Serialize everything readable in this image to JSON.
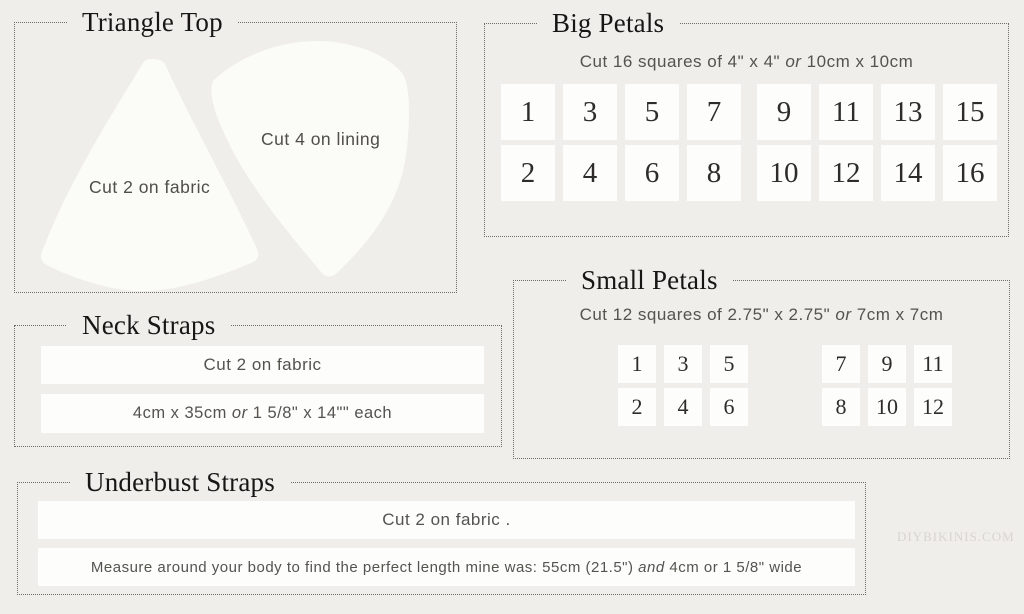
{
  "page": {
    "background": "#f0eeea",
    "panel_fill": "#fdfdfc",
    "border_color": "#6e6c68",
    "watermark": "DIYBIKINIS.COM"
  },
  "triangle_top": {
    "title": "Triangle Top",
    "fabric_label": "Cut 2 on fabric",
    "lining_label": "Cut 4 on lining"
  },
  "big_petals": {
    "title": "Big Petals",
    "subtitle": {
      "pre": "Cut 16 squares of 4\" x 4\"",
      "em": " or ",
      "post": "10cm x 10cm"
    },
    "groups": [
      [
        [
          1,
          3,
          5,
          7
        ],
        [
          2,
          4,
          6,
          8
        ]
      ],
      [
        [
          9,
          11,
          13,
          15
        ],
        [
          10,
          12,
          14,
          16
        ]
      ]
    ]
  },
  "small_petals": {
    "title": "Small Petals",
    "subtitle": {
      "pre": "Cut 12 squares of 2.75\" x 2.75\"",
      "em": " or ",
      "post": "7cm x 7cm"
    },
    "groups": [
      [
        [
          1,
          3,
          5
        ],
        [
          2,
          4,
          6
        ]
      ],
      [
        [
          7,
          9,
          11
        ],
        [
          8,
          10,
          12
        ]
      ]
    ]
  },
  "neck_straps": {
    "title": "Neck Straps",
    "cut_label": "Cut 2 on fabric",
    "size": {
      "pre": "4cm x 35cm",
      "em": " or ",
      "post": "1 5/8\" x 14\"\" each"
    }
  },
  "underbust_straps": {
    "title": "Underbust Straps",
    "cut_label": "Cut 2 on fabric .",
    "measure": {
      "pre": "Measure around your body to find the perfect length mine was: 55cm (21.5\")",
      "em": " and ",
      "post": "4cm or 1 5/8\" wide"
    }
  }
}
